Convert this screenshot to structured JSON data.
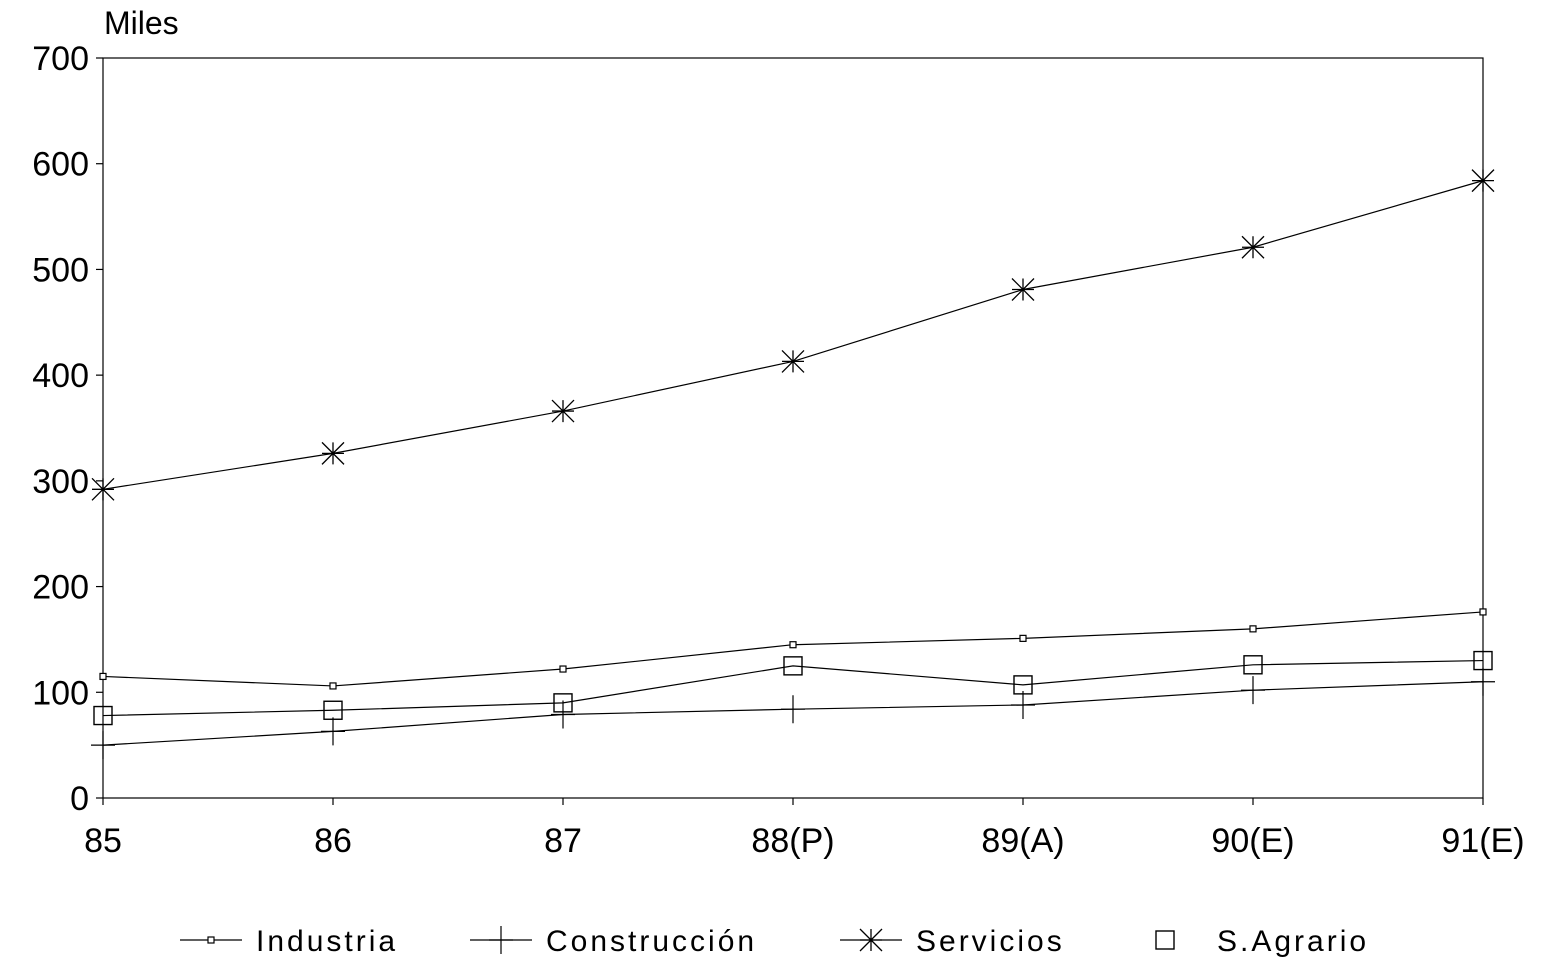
{
  "chart_data": {
    "type": "line",
    "unit_label": "Miles",
    "categories": [
      "85",
      "86",
      "87",
      "88(P)",
      "89(A)",
      "90(E)",
      "91(E)"
    ],
    "ylim": [
      0,
      700
    ],
    "yticks": [
      "0",
      "100",
      "200",
      "300",
      "400",
      "500",
      "600",
      "700"
    ],
    "grid": false,
    "legend_position": "bottom",
    "series": [
      {
        "name": "Industria",
        "marker": "small-square",
        "values": [
          115,
          106,
          122,
          145,
          151,
          160,
          176
        ]
      },
      {
        "name": "Construcción",
        "marker": "plus",
        "values": [
          50,
          63,
          79,
          84,
          88,
          102,
          110
        ]
      },
      {
        "name": "Servicios",
        "marker": "asterisk",
        "values": [
          292,
          326,
          366,
          413,
          481,
          521,
          584
        ]
      },
      {
        "name": "S.Agrario",
        "marker": "square",
        "values": [
          78,
          83,
          90,
          125,
          107,
          126,
          130
        ]
      }
    ]
  }
}
